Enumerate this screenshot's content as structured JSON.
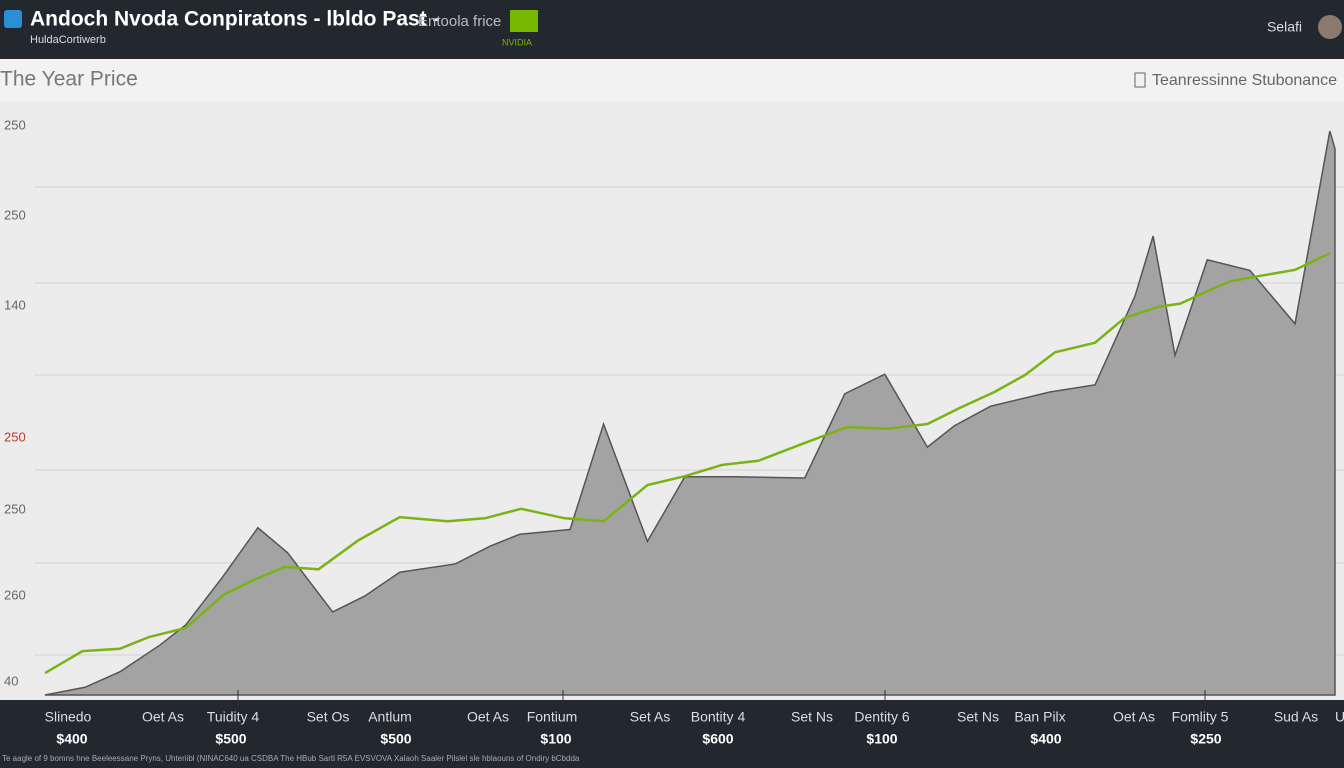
{
  "header": {
    "title": "Andoch Nvoda Conpiratons - lbldo Past -",
    "subtitle": "HuldaCortiwerb",
    "search": "Entoola frice",
    "logo": "NVIDIA",
    "user": "Selafi"
  },
  "toolbar": {
    "left": "The Year Price",
    "right": "Teanressinne Stubonance"
  },
  "chart_data": {
    "type": "area-line",
    "xlim": [
      0,
      100
    ],
    "ylim": [
      0,
      100
    ],
    "grid": true,
    "y_labels": [
      "250",
      "250",
      "140",
      "250",
      "250",
      "260",
      "40"
    ],
    "series": [
      {
        "kind": "area",
        "color": "#a3a3a3",
        "x": [
          0,
          3.1,
          5.8,
          8.9,
          10.9,
          13.7,
          16.5,
          18.8,
          22.3,
          24.8,
          27.5,
          31.8,
          34.5,
          36.8,
          40.7,
          43.3,
          46.7,
          49.6,
          53.5,
          58.9,
          62.0,
          65.1,
          68.4,
          70.5,
          73.3,
          77.9,
          81.4,
          84.5,
          85.9,
          87.6,
          90.1,
          93.4,
          96.9,
          99.6,
          100
        ],
        "values": [
          0,
          1.3,
          3.9,
          8.4,
          11.8,
          19.7,
          28.2,
          24.0,
          14.0,
          16.7,
          20.7,
          22.1,
          25.1,
          27.1,
          27.9,
          45.7,
          25.9,
          36.8,
          36.8,
          36.6,
          50.8,
          54.1,
          41.8,
          45.4,
          48.7,
          51.1,
          52.3,
          67.3,
          77.4,
          57.3,
          73.4,
          71.6,
          62.6,
          95.1,
          92.1
        ]
      },
      {
        "kind": "line",
        "color": "#7ab317",
        "x": [
          0,
          2.9,
          5.8,
          8.1,
          10.9,
          13.9,
          16.5,
          18.6,
          21.2,
          24.3,
          27.5,
          31.2,
          34.1,
          36.9,
          40.3,
          43.3,
          46.7,
          49.6,
          52.5,
          55.3,
          58.9,
          62.2,
          65.3,
          68.4,
          70.9,
          73.6,
          76.0,
          78.3,
          81.4,
          83.7,
          86.4,
          88.0,
          90.3,
          91.9,
          96.9,
          99.6
        ],
        "values": [
          3.7,
          7.4,
          7.8,
          9.8,
          11.3,
          17.0,
          19.7,
          21.6,
          21.2,
          26.1,
          30.0,
          29.3,
          29.8,
          31.4,
          29.8,
          29.3,
          35.4,
          36.9,
          38.8,
          39.5,
          42.5,
          45.2,
          44.9,
          45.7,
          48.4,
          51.1,
          54.0,
          57.8,
          59.4,
          63.6,
          65.5,
          66.0,
          68.3,
          69.8,
          71.7,
          74.5
        ]
      }
    ]
  },
  "footer": {
    "labels": [
      "Slinedo",
      "Oet As",
      "Tuidity 4",
      "Set Os",
      "Antlum",
      "Oet As",
      "Fontium",
      "Set As",
      "Bontity 4",
      "Set Ns",
      "Dentity 6",
      "Set Ns",
      "Ban Pilx",
      "Oet As",
      "Fomlity 5",
      "Sud As",
      "U"
    ],
    "prices": [
      "$400",
      "$500",
      "$500",
      "$100",
      "$600",
      "$100",
      "$400",
      "$250"
    ],
    "note": "Te aagle of 9 bomns hne Beeleessane Pryns, Uhteriibl (NINAC640 ua CSDBA The HBub Sartl R5A EVSVOVA Xalaoh Saaler Pilslel sle hblaouns of Ondiry bCbdda"
  }
}
